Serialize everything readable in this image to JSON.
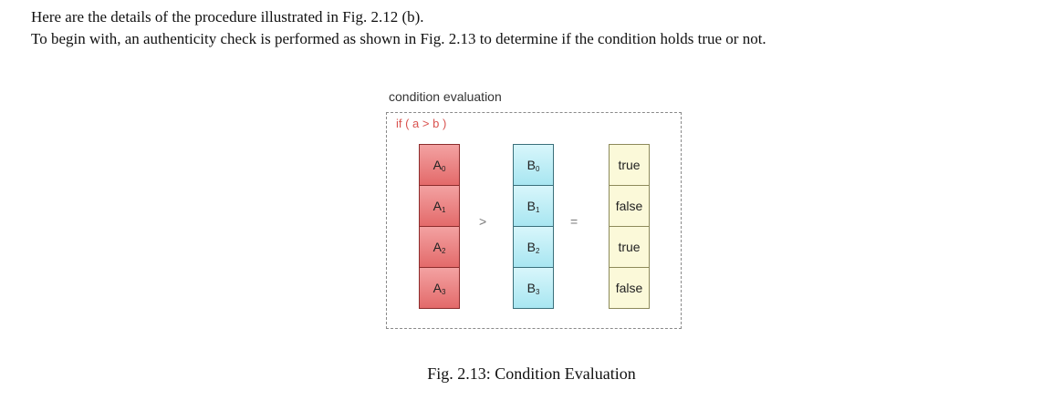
{
  "document": {
    "paragraphs": [
      "Here are the details of the procedure illustrated in Fig. 2.12 (b).",
      "To begin with, an authenticity check is performed as shown in Fig. 2.13 to determine if the condition holds true or not."
    ]
  },
  "figure": {
    "heading": "condition evaluation",
    "condition": "if ( a > b )",
    "operators": {
      "compare": ">",
      "equals": "="
    },
    "a_cells": [
      {
        "letter": "A",
        "index": "0"
      },
      {
        "letter": "A",
        "index": "1"
      },
      {
        "letter": "A",
        "index": "2"
      },
      {
        "letter": "A",
        "index": "3"
      }
    ],
    "b_cells": [
      {
        "letter": "B",
        "index": "0"
      },
      {
        "letter": "B",
        "index": "1"
      },
      {
        "letter": "B",
        "index": "2"
      },
      {
        "letter": "B",
        "index": "3"
      }
    ],
    "results": [
      "true",
      "false",
      "true",
      "false"
    ],
    "colors": {
      "a_cell": "#e36a6a",
      "b_cell": "#a8e6f1",
      "result_cell": "#fbf9d9",
      "condition_text": "#d9534f"
    },
    "caption": "Fig. 2.13: Condition Evaluation"
  }
}
